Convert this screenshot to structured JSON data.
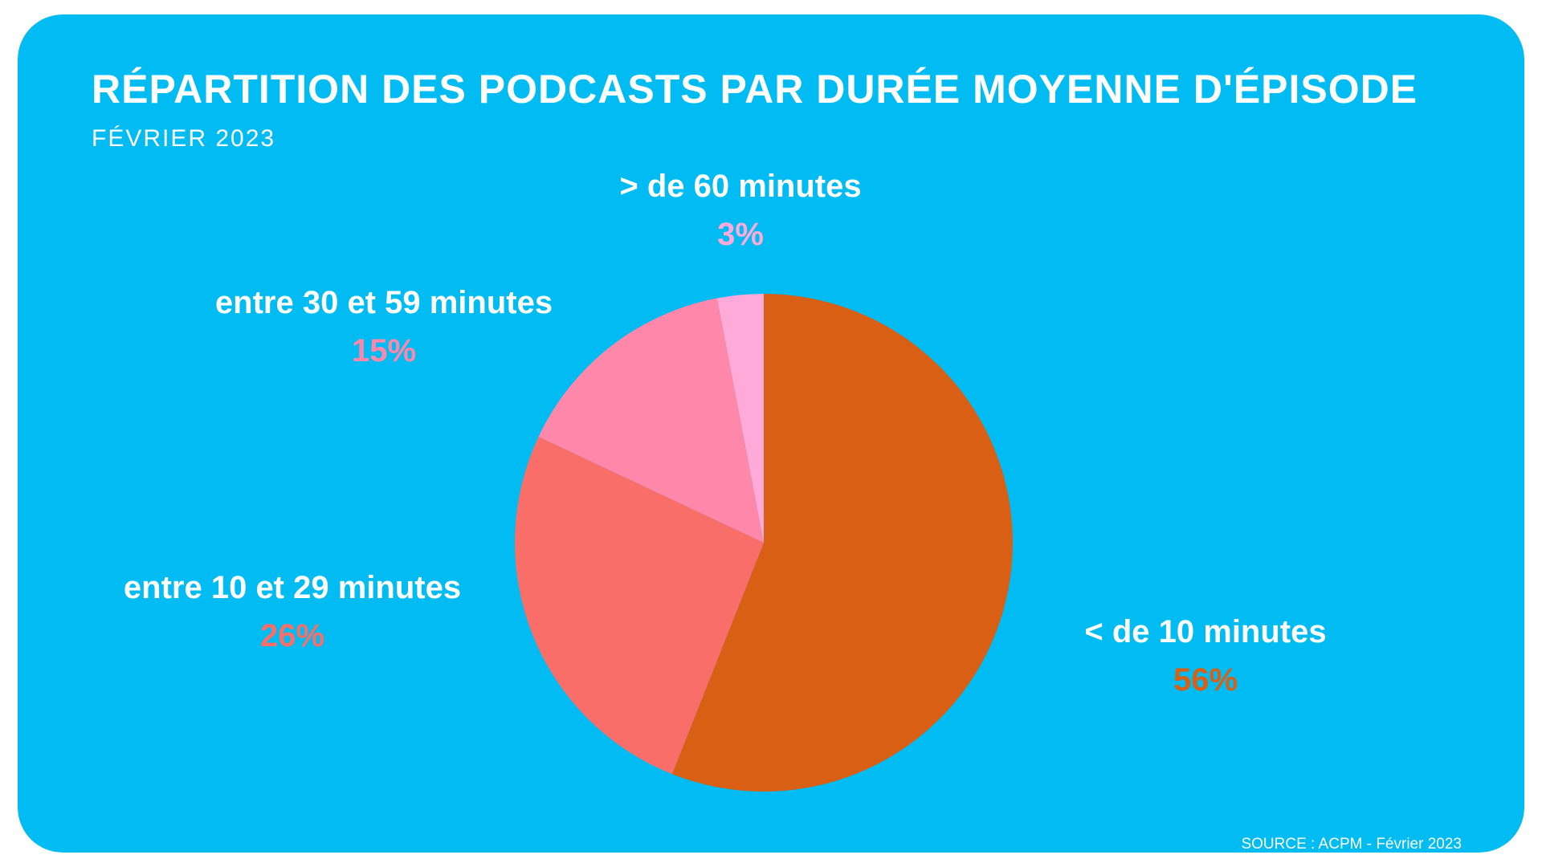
{
  "header": {
    "title": "RÉPARTITION DES PODCASTS PAR DURÉE MOYENNE D'ÉPISODE",
    "subtitle": "FÉVRIER 2023"
  },
  "footer": {
    "source": "SOURCE : ACPM - Février 2023"
  },
  "colors": {
    "background": "#00BCF2",
    "text": "#FFFFFF"
  },
  "chart_data": {
    "type": "pie",
    "title": "RÉPARTITION DES PODCASTS PAR DURÉE MOYENNE D'ÉPISODE",
    "subtitle": "FÉVRIER 2023",
    "start": "12 o'clock",
    "direction": "clockwise",
    "legend": "none",
    "slices": [
      {
        "label": "< de 10 minutes",
        "value": 56,
        "value_label": "56%",
        "color": "#D95F14"
      },
      {
        "label": "entre 10 et 29 minutes",
        "value": 26,
        "value_label": "26%",
        "color": "#F96E68"
      },
      {
        "label": "entre 30 et 59 minutes",
        "value": 15,
        "value_label": "15%",
        "color": "#FF88AA"
      },
      {
        "label": "> de 60 minutes",
        "value": 3,
        "value_label": "3%",
        "color": "#FFAAD8"
      }
    ]
  }
}
